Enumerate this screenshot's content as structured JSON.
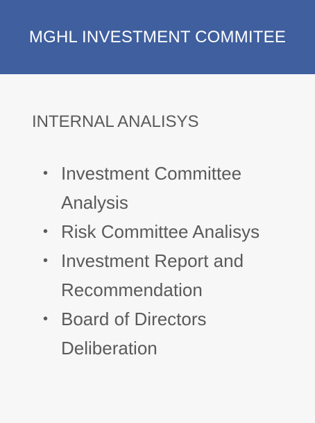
{
  "header": {
    "title": "MGHL INVESTMENT COMMITEE"
  },
  "section": {
    "title": "INTERNAL ANALISYS",
    "bullet_glyph": "•",
    "items": [
      {
        "label": "Investment Committee Analysis"
      },
      {
        "label": "Risk Committee Analisys"
      },
      {
        "label": "Investment Report and Recommendation"
      },
      {
        "label": "Board of Directors Deliberation"
      }
    ]
  },
  "colors": {
    "header_background": "#3f5f9e",
    "header_text": "#ffffff",
    "body_background": "#f7f7f7",
    "body_text": "#5a5a5a"
  }
}
